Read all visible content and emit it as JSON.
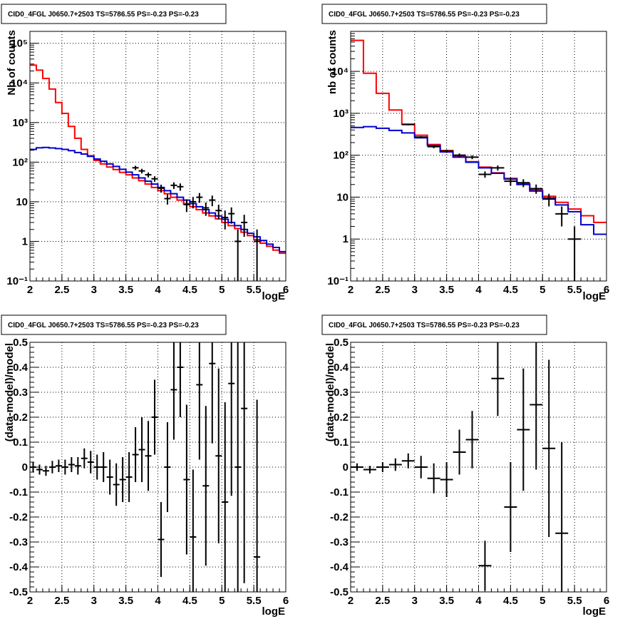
{
  "chart_data": [
    {
      "type": "line",
      "title": "CID0_4FGL J0650.7+2503 TS=5786.55 PS=-0.23 PS=-0.23",
      "xlabel": "logE",
      "ylabel": "Nb of counts",
      "xlim": [
        2,
        6
      ],
      "ylim": [
        0.1,
        200000
      ],
      "yscale": "log",
      "grid": true,
      "x_ticks": [
        "2",
        "2.5",
        "3",
        "3.5",
        "4",
        "4.5",
        "5",
        "5.5",
        "6"
      ],
      "y_ticks": [
        "10⁻¹",
        "1",
        "10",
        "10²",
        "10³",
        "10⁴",
        "10⁵"
      ],
      "bin_edges": [
        2.0,
        2.1,
        2.2,
        2.3,
        2.4,
        2.5,
        2.6,
        2.7,
        2.8,
        2.9,
        3.0,
        3.1,
        3.2,
        3.3,
        3.4,
        3.5,
        3.6,
        3.7,
        3.8,
        3.9,
        4.0,
        4.1,
        4.2,
        4.3,
        4.4,
        4.5,
        4.6,
        4.7,
        4.8,
        4.9,
        5.0,
        5.1,
        5.2,
        5.3,
        5.4,
        5.5,
        5.6,
        5.7,
        5.8,
        5.9,
        6.0
      ],
      "series": [
        {
          "color": "#ff0000",
          "values": [
            28000,
            21000,
            13000,
            7000,
            3200,
            1700,
            800,
            400,
            210,
            145,
            110,
            90,
            75,
            65,
            55,
            48,
            40,
            34,
            28,
            23,
            19,
            16,
            13,
            11,
            9,
            7.5,
            6.3,
            5.2,
            4.4,
            3.7,
            3.0,
            2.5,
            2.1,
            1.7,
            1.4,
            1.1,
            0.9,
            0.75,
            0.6,
            0.5
          ]
        },
        {
          "color": "#0000cc",
          "values": [
            210,
            230,
            235,
            228,
            220,
            210,
            195,
            175,
            160,
            140,
            120,
            105,
            90,
            78,
            66,
            56,
            48,
            40,
            33,
            28,
            23,
            19,
            16,
            13,
            11,
            9,
            7.5,
            6.3,
            5.2,
            4.4,
            3.6,
            3.0,
            2.5,
            2.0,
            1.6,
            1.3,
            1.05,
            0.85,
            0.7,
            0.55
          ]
        }
      ],
      "data_points": [
        {
          "x": 3.65,
          "y": 72,
          "err": 9
        },
        {
          "x": 3.75,
          "y": 60,
          "err": 8
        },
        {
          "x": 3.85,
          "y": 48,
          "err": 7
        },
        {
          "x": 3.95,
          "y": 38,
          "err": 6
        },
        {
          "x": 4.05,
          "y": 22,
          "err": 5
        },
        {
          "x": 4.15,
          "y": 12,
          "err": 3.5
        },
        {
          "x": 4.25,
          "y": 26,
          "err": 5
        },
        {
          "x": 4.35,
          "y": 24,
          "err": 5
        },
        {
          "x": 4.45,
          "y": 8.5,
          "err": 3
        },
        {
          "x": 4.55,
          "y": 10,
          "err": 3.2
        },
        {
          "x": 4.65,
          "y": 13,
          "err": 3.6
        },
        {
          "x": 4.75,
          "y": 7,
          "err": 2.6
        },
        {
          "x": 4.85,
          "y": 11,
          "err": 3.3
        },
        {
          "x": 4.95,
          "y": 6,
          "err": 2.4
        },
        {
          "x": 5.05,
          "y": 4,
          "err": 2
        },
        {
          "x": 5.15,
          "y": 5,
          "err": 2.2
        },
        {
          "x": 5.25,
          "y": 1,
          "err": 1
        },
        {
          "x": 5.35,
          "y": 3,
          "err": 1.7
        },
        {
          "x": 5.55,
          "y": 1,
          "err": 1
        }
      ]
    },
    {
      "type": "line",
      "title": "CID0_4FGL J0650.7+2503 TS=5786.55 PS=-0.23 PS=-0.23",
      "xlabel": "logE",
      "ylabel": "nb of counts",
      "xlim": [
        2,
        6
      ],
      "ylim": [
        0.1,
        90000
      ],
      "yscale": "log",
      "grid": true,
      "x_ticks": [
        "2",
        "2.5",
        "3",
        "3.5",
        "4",
        "4.5",
        "5",
        "5.5",
        "6"
      ],
      "y_ticks": [
        "10⁻¹",
        "1",
        "10",
        "10²",
        "10³",
        "10⁴"
      ],
      "bin_edges": [
        2.0,
        2.2,
        2.4,
        2.6,
        2.8,
        3.0,
        3.2,
        3.4,
        3.6,
        3.8,
        4.0,
        4.2,
        4.4,
        4.6,
        4.8,
        5.0,
        5.2,
        5.4,
        5.6,
        5.8,
        6.0
      ],
      "series": [
        {
          "color": "#ff0000",
          "values": [
            55000,
            9000,
            3000,
            1200,
            550,
            300,
            180,
            130,
            95,
            70,
            52,
            38,
            28,
            21,
            15,
            10.5,
            7.5,
            5.2,
            3.6,
            2.5
          ]
        },
        {
          "color": "#0000cc",
          "values": [
            460,
            480,
            440,
            390,
            340,
            260,
            170,
            120,
            90,
            68,
            50,
            37,
            27,
            20,
            14,
            9.5,
            6.5,
            4.5,
            2.2,
            1.3
          ]
        }
      ],
      "data_points": [
        {
          "x": 2.9,
          "y": 540,
          "err": 23
        },
        {
          "x": 3.1,
          "y": 270,
          "err": 16
        },
        {
          "x": 3.3,
          "y": 160,
          "err": 13
        },
        {
          "x": 3.5,
          "y": 125,
          "err": 11
        },
        {
          "x": 3.7,
          "y": 100,
          "err": 10
        },
        {
          "x": 3.9,
          "y": 90,
          "err": 9.5
        },
        {
          "x": 4.1,
          "y": 35,
          "err": 6
        },
        {
          "x": 4.3,
          "y": 50,
          "err": 7
        },
        {
          "x": 4.5,
          "y": 24,
          "err": 5
        },
        {
          "x": 4.7,
          "y": 22,
          "err": 4.7
        },
        {
          "x": 4.9,
          "y": 16,
          "err": 4
        },
        {
          "x": 5.1,
          "y": 9,
          "err": 3
        },
        {
          "x": 5.3,
          "y": 4,
          "err": 2
        },
        {
          "x": 5.5,
          "y": 1,
          "err": 1
        }
      ]
    },
    {
      "type": "scatter",
      "title": "CID0_4FGL J0650.7+2503 TS=5786.55 PS=-0.23 PS=-0.23",
      "xlabel": "logE",
      "ylabel": "(data-model)/model",
      "xlim": [
        2,
        6
      ],
      "ylim": [
        -0.5,
        0.5
      ],
      "grid": true,
      "x_ticks": [
        "2",
        "2.5",
        "3",
        "3.5",
        "4",
        "4.5",
        "5",
        "5.5",
        "6"
      ],
      "y_ticks": [
        "-0.5",
        "-0.4",
        "-0.3",
        "-0.2",
        "-0.1",
        "0",
        "0.1",
        "0.2",
        "0.3",
        "0.4",
        "0.5"
      ],
      "points": [
        {
          "x": 2.05,
          "y": 0.0,
          "err": 0.02
        },
        {
          "x": 2.15,
          "y": -0.01,
          "err": 0.02
        },
        {
          "x": 2.25,
          "y": -0.015,
          "err": 0.02
        },
        {
          "x": 2.35,
          "y": 0.0,
          "err": 0.025
        },
        {
          "x": 2.45,
          "y": 0.005,
          "err": 0.025
        },
        {
          "x": 2.55,
          "y": 0.0,
          "err": 0.03
        },
        {
          "x": 2.65,
          "y": 0.01,
          "err": 0.03
        },
        {
          "x": 2.75,
          "y": 0.005,
          "err": 0.035
        },
        {
          "x": 2.85,
          "y": 0.035,
          "err": 0.04
        },
        {
          "x": 2.95,
          "y": 0.02,
          "err": 0.045
        },
        {
          "x": 3.05,
          "y": 0.0,
          "err": 0.05
        },
        {
          "x": 3.15,
          "y": 0.0,
          "err": 0.06
        },
        {
          "x": 3.25,
          "y": -0.04,
          "err": 0.07
        },
        {
          "x": 3.35,
          "y": -0.07,
          "err": 0.085
        },
        {
          "x": 3.45,
          "y": -0.05,
          "err": 0.09
        },
        {
          "x": 3.55,
          "y": -0.04,
          "err": 0.1
        },
        {
          "x": 3.65,
          "y": 0.05,
          "err": 0.11
        },
        {
          "x": 3.75,
          "y": 0.07,
          "err": 0.13
        },
        {
          "x": 3.85,
          "y": 0.045,
          "err": 0.14
        },
        {
          "x": 3.95,
          "y": 0.2,
          "err": 0.15
        },
        {
          "x": 4.05,
          "y": -0.29,
          "err": 0.15
        },
        {
          "x": 4.15,
          "y": 0.0,
          "err": 0.18
        },
        {
          "x": 4.25,
          "y": 0.31,
          "err": 0.2
        },
        {
          "x": 4.35,
          "y": 0.4,
          "err": 0.2
        },
        {
          "x": 4.45,
          "y": -0.05,
          "err": 0.3
        },
        {
          "x": 4.55,
          "y": -0.28,
          "err": 0.27
        },
        {
          "x": 4.65,
          "y": 0.33,
          "err": 0.3
        },
        {
          "x": 4.75,
          "y": -0.075,
          "err": 0.32
        },
        {
          "x": 4.85,
          "y": 0.415,
          "err": 0.32
        },
        {
          "x": 4.95,
          "y": 0.045,
          "err": 0.35
        },
        {
          "x": 5.05,
          "y": -0.14,
          "err": 0.4
        },
        {
          "x": 5.15,
          "y": 0.335,
          "err": 0.45
        },
        {
          "x": 5.25,
          "y": 0.0,
          "err": 0.5
        },
        {
          "x": 5.35,
          "y": 0.235,
          "err": 0.7
        },
        {
          "x": 5.55,
          "y": -0.36,
          "err": 0.63
        }
      ]
    },
    {
      "type": "scatter",
      "title": "CID0_4FGL J0650.7+2503 TS=5786.55 PS=-0.23 PS=-0.23",
      "xlabel": "logE",
      "ylabel": "(data-model)/model",
      "xlim": [
        2,
        6
      ],
      "ylim": [
        -0.5,
        0.5
      ],
      "grid": true,
      "x_ticks": [
        "2",
        "2.5",
        "3",
        "3.5",
        "4",
        "4.5",
        "5",
        "5.5",
        "6"
      ],
      "y_ticks": [
        "-0.5",
        "-0.4",
        "-0.3",
        "-0.2",
        "-0.1",
        "0",
        "0.1",
        "0.2",
        "0.3",
        "0.4",
        "0.5"
      ],
      "points": [
        {
          "x": 2.1,
          "y": 0.0,
          "err": 0.015
        },
        {
          "x": 2.3,
          "y": -0.01,
          "err": 0.015
        },
        {
          "x": 2.5,
          "y": 0.0,
          "err": 0.02
        },
        {
          "x": 2.7,
          "y": 0.01,
          "err": 0.025
        },
        {
          "x": 2.9,
          "y": 0.025,
          "err": 0.03
        },
        {
          "x": 3.1,
          "y": 0.0,
          "err": 0.045
        },
        {
          "x": 3.3,
          "y": -0.045,
          "err": 0.06
        },
        {
          "x": 3.5,
          "y": -0.05,
          "err": 0.07
        },
        {
          "x": 3.7,
          "y": 0.06,
          "err": 0.09
        },
        {
          "x": 3.9,
          "y": 0.11,
          "err": 0.115
        },
        {
          "x": 4.1,
          "y": -0.395,
          "err": 0.1
        },
        {
          "x": 4.3,
          "y": 0.355,
          "err": 0.15
        },
        {
          "x": 4.5,
          "y": -0.16,
          "err": 0.18
        },
        {
          "x": 4.7,
          "y": 0.15,
          "err": 0.245
        },
        {
          "x": 4.9,
          "y": 0.25,
          "err": 0.26
        },
        {
          "x": 5.1,
          "y": 0.075,
          "err": 0.355
        },
        {
          "x": 5.3,
          "y": -0.265,
          "err": 0.365
        }
      ]
    }
  ]
}
